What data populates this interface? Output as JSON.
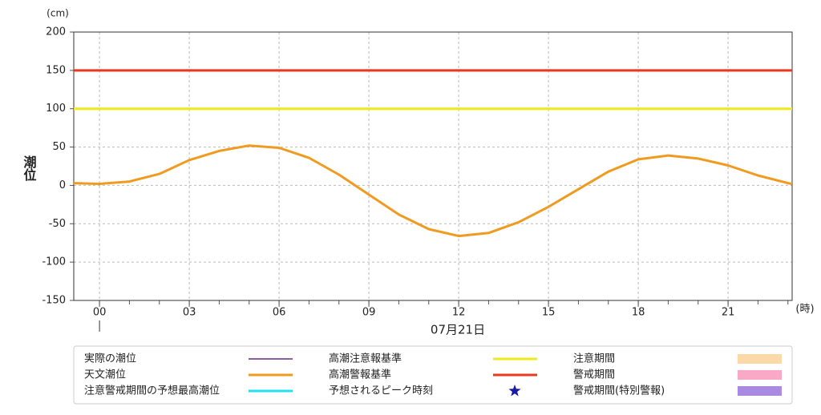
{
  "chart_data": {
    "type": "line",
    "y_unit": "(cm)",
    "y_label": "潮位",
    "x_unit": "(時)",
    "date": "07月21日",
    "xlim": [
      -0.86,
      23.14
    ],
    "xticks": [
      {
        "value": 0,
        "label": "00"
      },
      {
        "value": 3,
        "label": "03"
      },
      {
        "value": 6,
        "label": "06"
      },
      {
        "value": 9,
        "label": "09"
      },
      {
        "value": 12,
        "label": "12"
      },
      {
        "value": 15,
        "label": "15"
      },
      {
        "value": 18,
        "label": "18"
      },
      {
        "value": 21,
        "label": "21"
      }
    ],
    "xminorticks": [
      0,
      1,
      2,
      3,
      4,
      5,
      6,
      7,
      8,
      9,
      10,
      11,
      12,
      13,
      14,
      15,
      16,
      17,
      18,
      19,
      20,
      21,
      22,
      23
    ],
    "ylim": [
      -150,
      200
    ],
    "yticks": [
      200,
      150,
      100,
      50,
      0,
      -50,
      -100,
      -150
    ],
    "grid": true,
    "series": [
      {
        "name": "実際の潮位",
        "color": "#8e5ea2",
        "symbol": "line"
      },
      {
        "name": "高潮注意報基準",
        "color": "#f0e81a",
        "symbol": "line",
        "x": [
          -0.86,
          23.14
        ],
        "values": [
          100,
          100
        ]
      },
      {
        "name": "注意期間",
        "color": "#fcd9a8",
        "symbol": "box"
      },
      {
        "name": "天文潮位",
        "color": "#f09a1f",
        "symbol": "line",
        "x": [
          -0.86,
          0,
          1,
          2,
          3,
          4,
          5,
          6,
          7,
          8,
          9,
          10,
          11,
          12,
          13,
          14,
          15,
          16,
          17,
          18,
          19,
          20,
          21,
          22,
          23,
          23.14
        ],
        "values": [
          3,
          2,
          5,
          15,
          33,
          45,
          52,
          49,
          36,
          14,
          -12,
          -38,
          -57,
          -66,
          -62,
          -48,
          -28,
          -5,
          18,
          34,
          39,
          35,
          26,
          13,
          3,
          2
        ]
      },
      {
        "name": "高潮警報基準",
        "color": "#e8391e",
        "symbol": "line",
        "x": [
          -0.86,
          23.14
        ],
        "values": [
          150,
          150
        ]
      },
      {
        "name": "警戒期間",
        "color": "#f9a8c6",
        "symbol": "box"
      },
      {
        "name": "注意警戒期間の予想最高潮位",
        "color": "#22e0f0",
        "symbol": "line"
      },
      {
        "name": "予想されるピーク時刻",
        "color": "#1a1aa8",
        "symbol": "star"
      },
      {
        "name": "警戒期間(特別警報)",
        "color": "#a98ae0",
        "symbol": "box"
      }
    ]
  }
}
